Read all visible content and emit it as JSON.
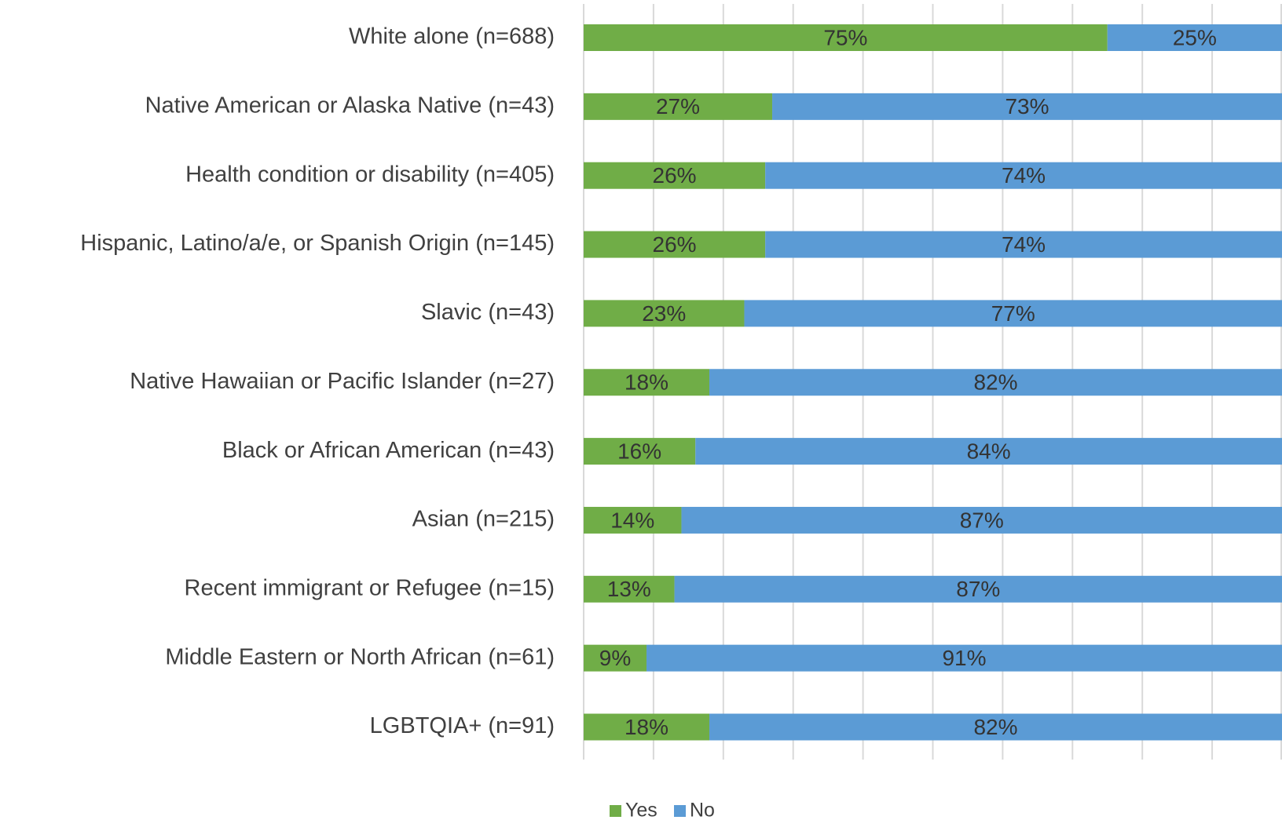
{
  "chart_data": {
    "type": "stacked_bar_horizontal",
    "categories": [
      "White alone (n=688)",
      "Native American or Alaska Native (n=43)",
      "Health condition or disability (n=405)",
      "Hispanic, Latino/a/e, or Spanish Origin (n=145)",
      "Slavic (n=43)",
      "Native Hawaiian or Pacific Islander (n=27)",
      "Black or African American (n=43)",
      "Asian (n=215)",
      "Recent immigrant or Refugee (n=15)",
      "Middle Eastern or North African (n=61)",
      "LGBTQIA+ (n=91)"
    ],
    "series": [
      {
        "name": "Yes",
        "color": "#70ad47",
        "values": [
          75,
          27,
          26,
          26,
          23,
          18,
          16,
          14,
          13,
          9,
          18
        ],
        "value_labels": [
          "75%",
          "27%",
          "26%",
          "26%",
          "23%",
          "18%",
          "16%",
          "14%",
          "13%",
          "9%",
          "18%"
        ]
      },
      {
        "name": "No",
        "color": "#5b9bd5",
        "values": [
          25,
          73,
          74,
          74,
          77,
          82,
          84,
          87,
          87,
          91,
          82
        ],
        "value_labels": [
          "25%",
          "73%",
          "74%",
          "74%",
          "77%",
          "82%",
          "84%",
          "87%",
          "87%",
          "91%",
          "82%"
        ]
      }
    ],
    "xlim": [
      0,
      100
    ],
    "xticks": [
      0,
      10,
      20,
      30,
      40,
      50,
      60,
      70,
      80,
      90,
      100
    ],
    "grid": true,
    "legend": "bottom"
  }
}
